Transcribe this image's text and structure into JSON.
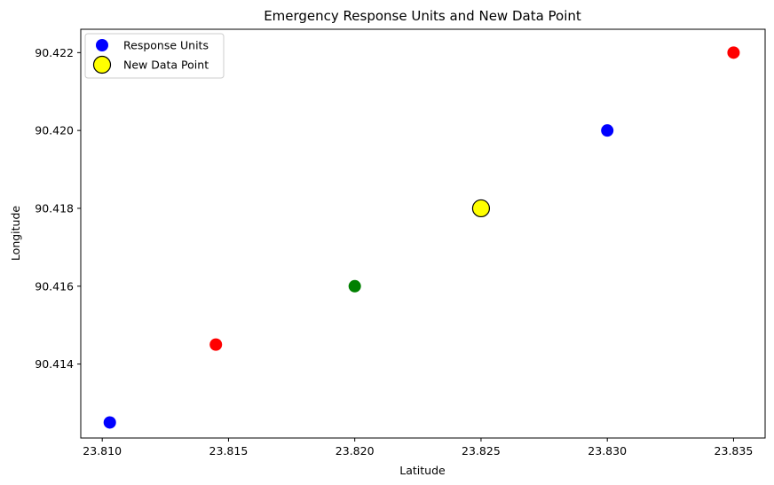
{
  "chart_data": {
    "type": "scatter",
    "title": "Emergency Response Units and New Data Point",
    "xlabel": "Latitude",
    "ylabel": "Longitude",
    "xlim": [
      23.80915,
      23.83625
    ],
    "ylim": [
      90.4121,
      90.4226
    ],
    "xticks": [
      23.81,
      23.815,
      23.82,
      23.825,
      23.83,
      23.835
    ],
    "xtick_labels": [
      "23.810",
      "23.815",
      "23.820",
      "23.825",
      "23.830",
      "23.835"
    ],
    "yticks": [
      90.414,
      90.416,
      90.418,
      90.42,
      90.422
    ],
    "ytick_labels": [
      "90.414",
      "90.416",
      "90.418",
      "90.420",
      "90.422"
    ],
    "grid": false,
    "legend_position": "top-left",
    "series": [
      {
        "name": "Response Units",
        "legend_color": "#0000ff",
        "points": [
          {
            "x": 23.8103,
            "y": 90.4125,
            "color": "#0000ff"
          },
          {
            "x": 23.8145,
            "y": 90.4145,
            "color": "#ff0000"
          },
          {
            "x": 23.82,
            "y": 90.416,
            "color": "#008000"
          },
          {
            "x": 23.83,
            "y": 90.42,
            "color": "#0000ff"
          },
          {
            "x": 23.835,
            "y": 90.422,
            "color": "#ff0000"
          }
        ]
      },
      {
        "name": "New Data Point",
        "legend_color": "#ffff00",
        "edge_color": "#000000",
        "points": [
          {
            "x": 23.825,
            "y": 90.418,
            "color": "#ffff00"
          }
        ]
      }
    ]
  }
}
